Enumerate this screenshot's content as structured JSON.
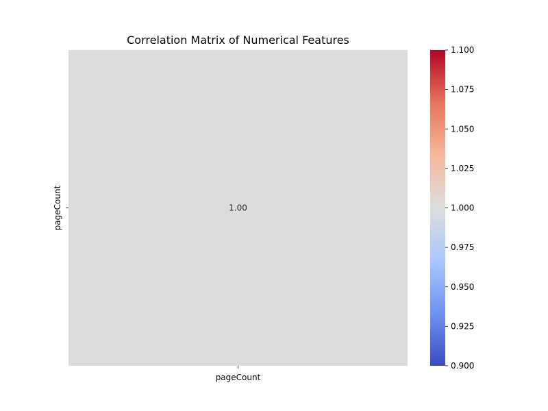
{
  "chart_data": {
    "type": "heatmap",
    "title": "Correlation Matrix of Numerical Features",
    "x_categories": [
      "pageCount"
    ],
    "y_categories": [
      "pageCount"
    ],
    "matrix": [
      [
        1.0
      ]
    ],
    "cell_labels": [
      [
        "1.00"
      ]
    ],
    "colormap": "coolwarm",
    "cell_color": "#dddcdc",
    "colorbar": {
      "range": [
        0.9,
        1.1
      ],
      "ticks": [
        0.9,
        0.925,
        0.95,
        0.975,
        1.0,
        1.025,
        1.05,
        1.075,
        1.1
      ],
      "tick_labels": [
        "0.900",
        "0.925",
        "0.950",
        "0.975",
        "1.000",
        "1.025",
        "1.050",
        "1.075",
        "1.100"
      ],
      "stops": [
        "#3b4cc0",
        "#6f92f3",
        "#aac7fd",
        "#dddddd",
        "#f7b89c",
        "#e7745b",
        "#b40426"
      ]
    }
  }
}
